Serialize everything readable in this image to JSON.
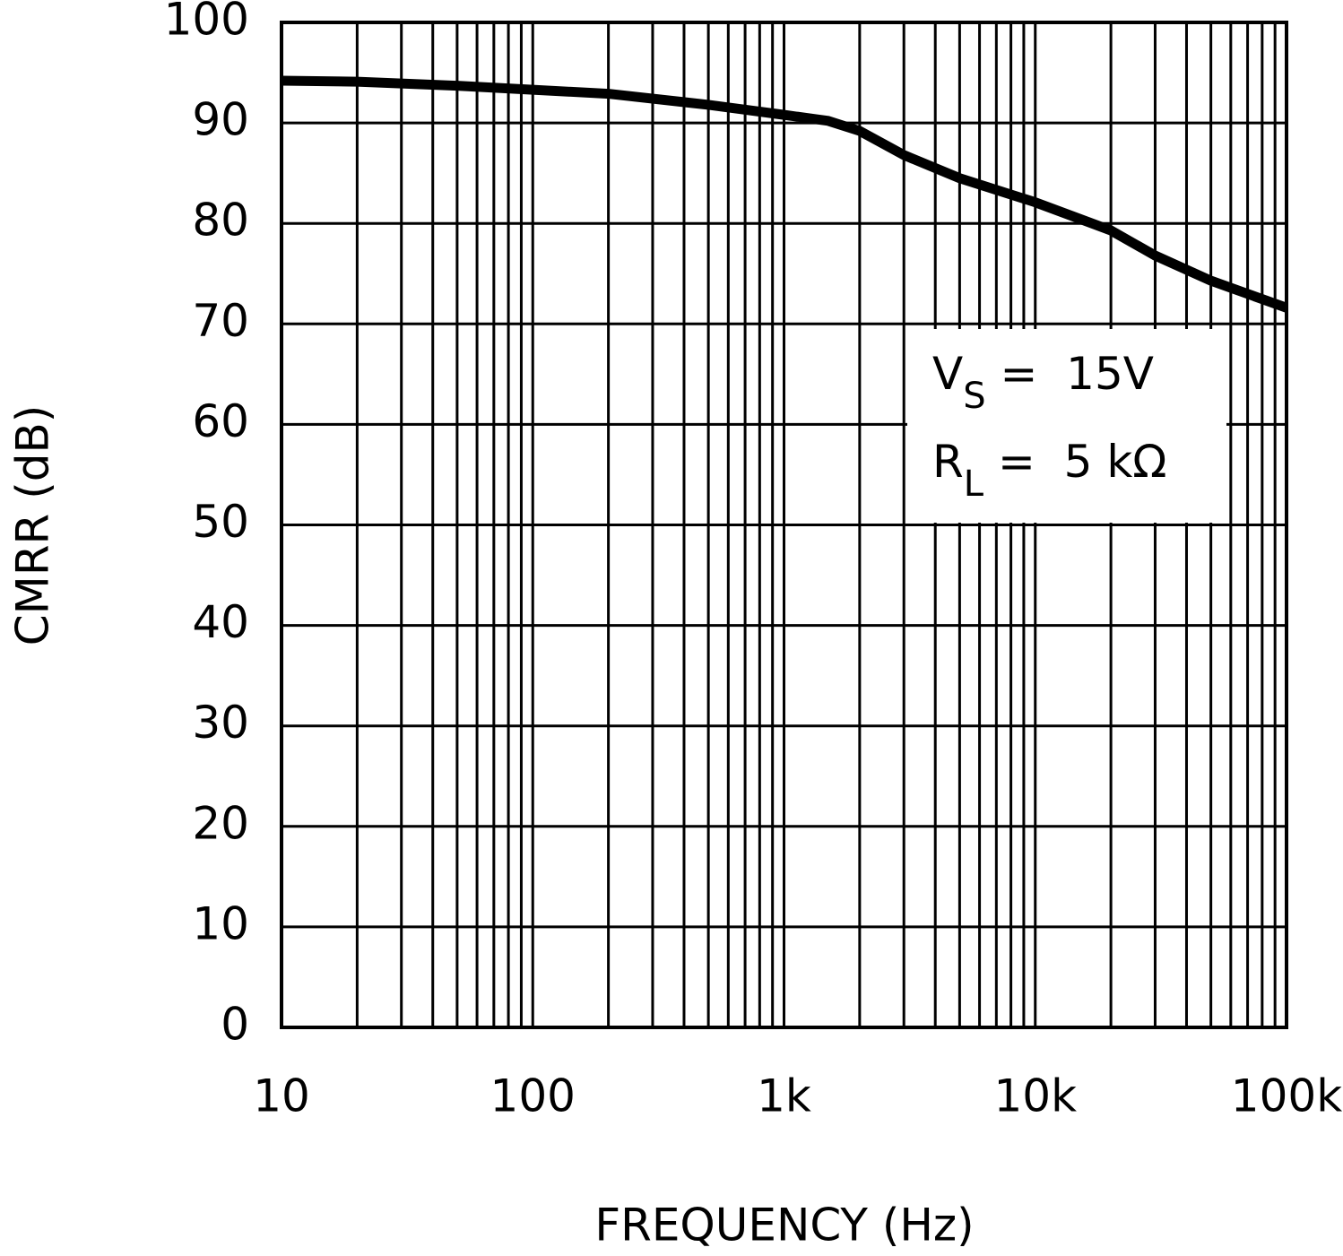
{
  "chart_data": {
    "type": "line",
    "x_label": "FREQUENCY (Hz)",
    "y_label": "CMRR (dB)",
    "x_log": true,
    "grid": true,
    "x": [
      10,
      20,
      50,
      100,
      200,
      500,
      1000,
      1500,
      2000,
      3000,
      5000,
      10000,
      20000,
      30000,
      50000,
      100000
    ],
    "series": [
      {
        "color": "#000000",
        "values": [
          94.2,
          94.1,
          93.7,
          93.3,
          92.9,
          91.8,
          90.8,
          90.2,
          89.2,
          86.8,
          84.5,
          82.1,
          79.3,
          76.8,
          74.3,
          71.6
        ]
      }
    ],
    "xlim": [
      10,
      100000
    ],
    "ylim": [
      0,
      100
    ],
    "xticks": [
      10,
      100,
      {
        "value": 1000,
        "label": "1k"
      },
      {
        "value": 10000,
        "label": "10k"
      },
      {
        "value": 100000,
        "label": "100k"
      }
    ],
    "xminorticks": [
      20,
      30,
      40,
      50,
      60,
      70,
      80,
      90,
      200,
      300,
      400,
      500,
      600,
      700,
      800,
      900,
      2000,
      3000,
      4000,
      5000,
      6000,
      7000,
      8000,
      9000,
      20000,
      30000,
      40000,
      50000,
      60000,
      70000,
      80000,
      90000
    ],
    "yticks": [
      0,
      10,
      20,
      30,
      40,
      50,
      60,
      70,
      80,
      90,
      100
    ],
    "annotations": [
      {
        "main": "V",
        "sub": "S",
        "rest": " =  15V"
      },
      {
        "main": "R",
        "sub": "L",
        "rest": " =  5 kΩ"
      }
    ]
  }
}
